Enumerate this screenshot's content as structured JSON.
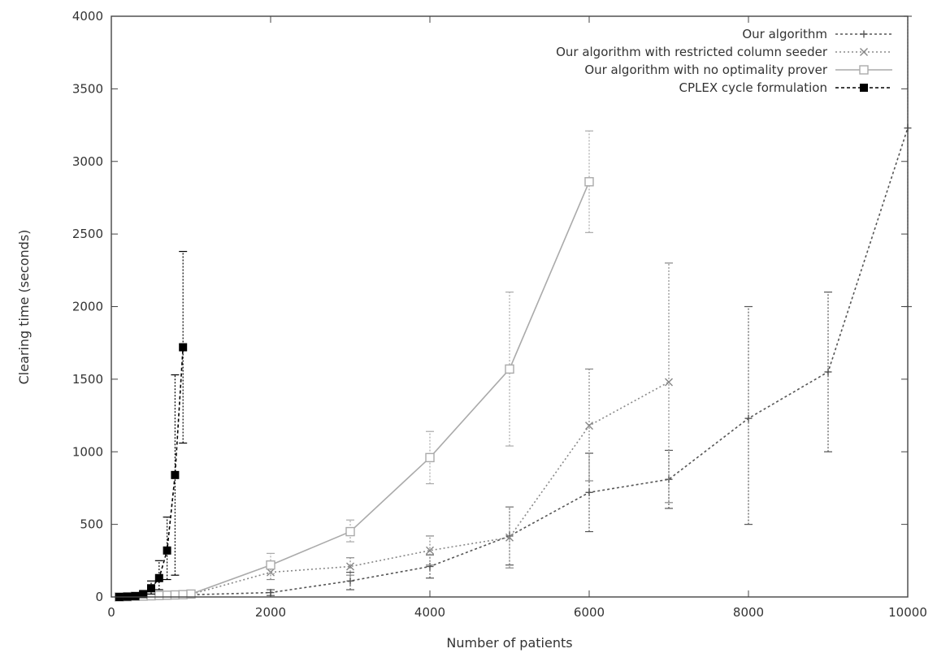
{
  "chart_data": {
    "type": "line",
    "title": "",
    "xlabel": "Number of patients",
    "ylabel": "Clearing time (seconds)",
    "xlim": [
      0,
      10000
    ],
    "ylim": [
      0,
      4000
    ],
    "xticks": [
      "0",
      "2000",
      "4000",
      "6000",
      "8000",
      "10000"
    ],
    "yticks": [
      "0",
      "500",
      "1000",
      "1500",
      "2000",
      "2500",
      "3000",
      "3500",
      "4000"
    ],
    "grid": false,
    "legend_position": "top-right",
    "series": [
      {
        "name": "Our algorithm",
        "color": "#555555",
        "marker": "plus",
        "dash": "3,3",
        "points": [
          {
            "x": 100,
            "y": 0,
            "lo": 0,
            "hi": 5
          },
          {
            "x": 200,
            "y": 1,
            "lo": 0,
            "hi": 5
          },
          {
            "x": 300,
            "y": 2,
            "lo": 0,
            "hi": 8
          },
          {
            "x": 400,
            "y": 3,
            "lo": 0,
            "hi": 10
          },
          {
            "x": 500,
            "y": 5,
            "lo": 0,
            "hi": 15
          },
          {
            "x": 600,
            "y": 6,
            "lo": 0,
            "hi": 18
          },
          {
            "x": 700,
            "y": 8,
            "lo": 0,
            "hi": 20
          },
          {
            "x": 800,
            "y": 10,
            "lo": 0,
            "hi": 25
          },
          {
            "x": 900,
            "y": 12,
            "lo": 0,
            "hi": 30
          },
          {
            "x": 1000,
            "y": 15,
            "lo": 0,
            "hi": 35
          },
          {
            "x": 2000,
            "y": 30,
            "lo": 10,
            "hi": 50
          },
          {
            "x": 3000,
            "y": 110,
            "lo": 50,
            "hi": 170
          },
          {
            "x": 4000,
            "y": 210,
            "lo": 130,
            "hi": 290
          },
          {
            "x": 5000,
            "y": 420,
            "lo": 220,
            "hi": 620
          },
          {
            "x": 6000,
            "y": 720,
            "lo": 450,
            "hi": 990
          },
          {
            "x": 7000,
            "y": 810,
            "lo": 610,
            "hi": 1010
          },
          {
            "x": 8000,
            "y": 1230,
            "lo": 500,
            "hi": 2000
          },
          {
            "x": 9000,
            "y": 1550,
            "lo": 1000,
            "hi": 2100
          },
          {
            "x": 10000,
            "y": 3230,
            "lo": 2000,
            "hi": 4000
          }
        ]
      },
      {
        "name": "Our algorithm with restricted column seeder",
        "color": "#888888",
        "marker": "x",
        "dash": "2,3",
        "points": [
          {
            "x": 100,
            "y": 0,
            "lo": 0,
            "hi": 5
          },
          {
            "x": 200,
            "y": 2,
            "lo": 0,
            "hi": 8
          },
          {
            "x": 300,
            "y": 3,
            "lo": 0,
            "hi": 10
          },
          {
            "x": 400,
            "y": 5,
            "lo": 0,
            "hi": 12
          },
          {
            "x": 500,
            "y": 7,
            "lo": 0,
            "hi": 15
          },
          {
            "x": 600,
            "y": 9,
            "lo": 0,
            "hi": 20
          },
          {
            "x": 700,
            "y": 11,
            "lo": 0,
            "hi": 25
          },
          {
            "x": 800,
            "y": 13,
            "lo": 0,
            "hi": 30
          },
          {
            "x": 900,
            "y": 15,
            "lo": 0,
            "hi": 35
          },
          {
            "x": 1000,
            "y": 18,
            "lo": 0,
            "hi": 40
          },
          {
            "x": 2000,
            "y": 170,
            "lo": 120,
            "hi": 230
          },
          {
            "x": 3000,
            "y": 210,
            "lo": 150,
            "hi": 270
          },
          {
            "x": 4000,
            "y": 320,
            "lo": 220,
            "hi": 420
          },
          {
            "x": 5000,
            "y": 410,
            "lo": 200,
            "hi": 620
          },
          {
            "x": 6000,
            "y": 1180,
            "lo": 800,
            "hi": 1570
          },
          {
            "x": 7000,
            "y": 1480,
            "lo": 650,
            "hi": 2300
          }
        ]
      },
      {
        "name": "Our algorithm with no optimality prover",
        "color": "#aaaaaa",
        "marker": "square-open",
        "dash": "none",
        "points": [
          {
            "x": 100,
            "y": 0,
            "lo": 0,
            "hi": 5
          },
          {
            "x": 200,
            "y": 2,
            "lo": 0,
            "hi": 8
          },
          {
            "x": 300,
            "y": 4,
            "lo": 0,
            "hi": 12
          },
          {
            "x": 400,
            "y": 6,
            "lo": 0,
            "hi": 15
          },
          {
            "x": 500,
            "y": 8,
            "lo": 0,
            "hi": 20
          },
          {
            "x": 600,
            "y": 10,
            "lo": 0,
            "hi": 25
          },
          {
            "x": 700,
            "y": 12,
            "lo": 0,
            "hi": 28
          },
          {
            "x": 800,
            "y": 14,
            "lo": 0,
            "hi": 30
          },
          {
            "x": 900,
            "y": 16,
            "lo": 0,
            "hi": 35
          },
          {
            "x": 1000,
            "y": 20,
            "lo": 0,
            "hi": 40
          },
          {
            "x": 2000,
            "y": 220,
            "lo": 160,
            "hi": 300
          },
          {
            "x": 3000,
            "y": 450,
            "lo": 380,
            "hi": 530
          },
          {
            "x": 4000,
            "y": 960,
            "lo": 780,
            "hi": 1140
          },
          {
            "x": 5000,
            "y": 1570,
            "lo": 1040,
            "hi": 2100
          },
          {
            "x": 6000,
            "y": 2860,
            "lo": 2510,
            "hi": 3210
          }
        ]
      },
      {
        "name": "CPLEX cycle formulation",
        "color": "#000000",
        "marker": "square-filled",
        "dash": "4,3",
        "points": [
          {
            "x": 100,
            "y": 0,
            "lo": 0,
            "hi": 5
          },
          {
            "x": 200,
            "y": 2,
            "lo": 0,
            "hi": 6
          },
          {
            "x": 300,
            "y": 6,
            "lo": 0,
            "hi": 15
          },
          {
            "x": 400,
            "y": 20,
            "lo": 5,
            "hi": 40
          },
          {
            "x": 500,
            "y": 60,
            "lo": 20,
            "hi": 110
          },
          {
            "x": 600,
            "y": 130,
            "lo": 50,
            "hi": 250
          },
          {
            "x": 700,
            "y": 320,
            "lo": 120,
            "hi": 550
          },
          {
            "x": 800,
            "y": 840,
            "lo": 150,
            "hi": 1530
          },
          {
            "x": 900,
            "y": 1720,
            "lo": 1060,
            "hi": 2380
          }
        ]
      }
    ]
  }
}
